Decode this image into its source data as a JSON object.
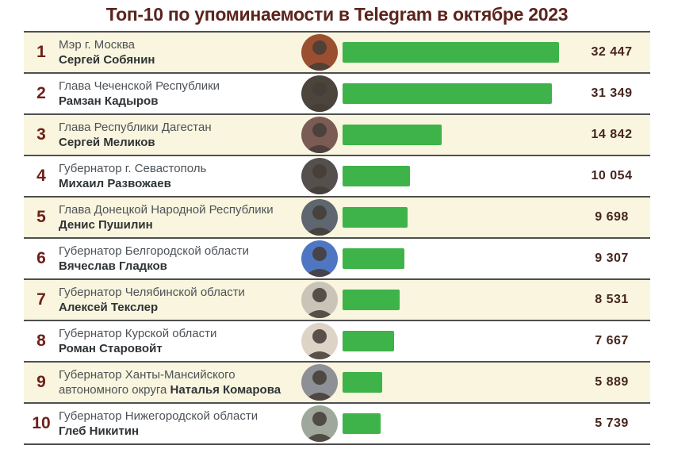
{
  "title": "Топ-10 по упоминаемости в Telegram в октябре 2023",
  "colors": {
    "bar_green": "#3eb349",
    "row_cream": "#f9f5de",
    "row_white": "#ffffff",
    "divider": "#4f4f4f",
    "title_maroon": "#5b241d",
    "rank_maroon": "#6e2018",
    "value_brown": "#45251d"
  },
  "chart_data": {
    "type": "bar",
    "orientation": "horizontal",
    "title": "Топ-10 по упоминаемости в Telegram в октябре 2023",
    "categories": [
      "Сергей Собянин",
      "Рамзан Кадыров",
      "Сергей Меликов",
      "Михаил Развожаев",
      "Денис Пушилин",
      "Вячеслав Гладков",
      "Алексей Текслер",
      "Роман Старовойт",
      "Наталья Комарова",
      "Глеб Никитин"
    ],
    "values": [
      32447,
      31349,
      14842,
      10054,
      9698,
      9307,
      8531,
      7667,
      5889,
      5739
    ],
    "value_labels": [
      "32 447",
      "31 349",
      "14 842",
      "10 054",
      "9 698",
      "9 307",
      "8 531",
      "7 667",
      "5 889",
      "5 739"
    ],
    "xlim": [
      0,
      32447
    ],
    "legend": "none",
    "grid": false,
    "bar_color": "#3eb349"
  },
  "rows": [
    {
      "rank": "1",
      "position": "Мэр г. Москва",
      "name_prefix": "",
      "name": "Сергей Собянин",
      "value": "32 447",
      "photo_bg": "#9a5030"
    },
    {
      "rank": "2",
      "position": "Глава Чеченской Республики",
      "name_prefix": "",
      "name": "Рамзан Кадыров",
      "value": "31 349",
      "photo_bg": "#4c453b"
    },
    {
      "rank": "3",
      "position": "Глава Республики Дагестан",
      "name_prefix": "",
      "name": "Сергей Меликов",
      "value": "14 842",
      "photo_bg": "#7a5c55"
    },
    {
      "rank": "4",
      "position": "Губернатор г. Севастополь",
      "name_prefix": "",
      "name": "Михаил Развожаев",
      "value": "10 054",
      "photo_bg": "#55504e"
    },
    {
      "rank": "5",
      "position": "Глава Донецкой Народной Республики",
      "name_prefix": "",
      "name": "Денис Пушилин",
      "value": "9 698",
      "photo_bg": "#5e6670"
    },
    {
      "rank": "6",
      "position": "Губернатор Белгородской области",
      "name_prefix": "",
      "name": "Вячеслав Гладков",
      "value": "9 307",
      "photo_bg": "#4f76c2"
    },
    {
      "rank": "7",
      "position": "Губернатор Челябинской области",
      "name_prefix": "",
      "name": "Алексей Текслер",
      "value": "8 531",
      "photo_bg": "#c8c4b8"
    },
    {
      "rank": "8",
      "position": "Губернатор Курской области",
      "name_prefix": "",
      "name": "Роман Старовойт",
      "value": "7 667",
      "photo_bg": "#ddd3c6"
    },
    {
      "rank": "9",
      "position": "Губернатор Ханты-Мансийского",
      "name_prefix": "автономного округа ",
      "name": "Наталья Комарова",
      "value": "5 889",
      "photo_bg": "#8d9196"
    },
    {
      "rank": "10",
      "position": "Губернатор Нижегородской области",
      "name_prefix": "",
      "name": "Глеб Никитин",
      "value": "5 739",
      "photo_bg": "#9fa89b"
    }
  ]
}
